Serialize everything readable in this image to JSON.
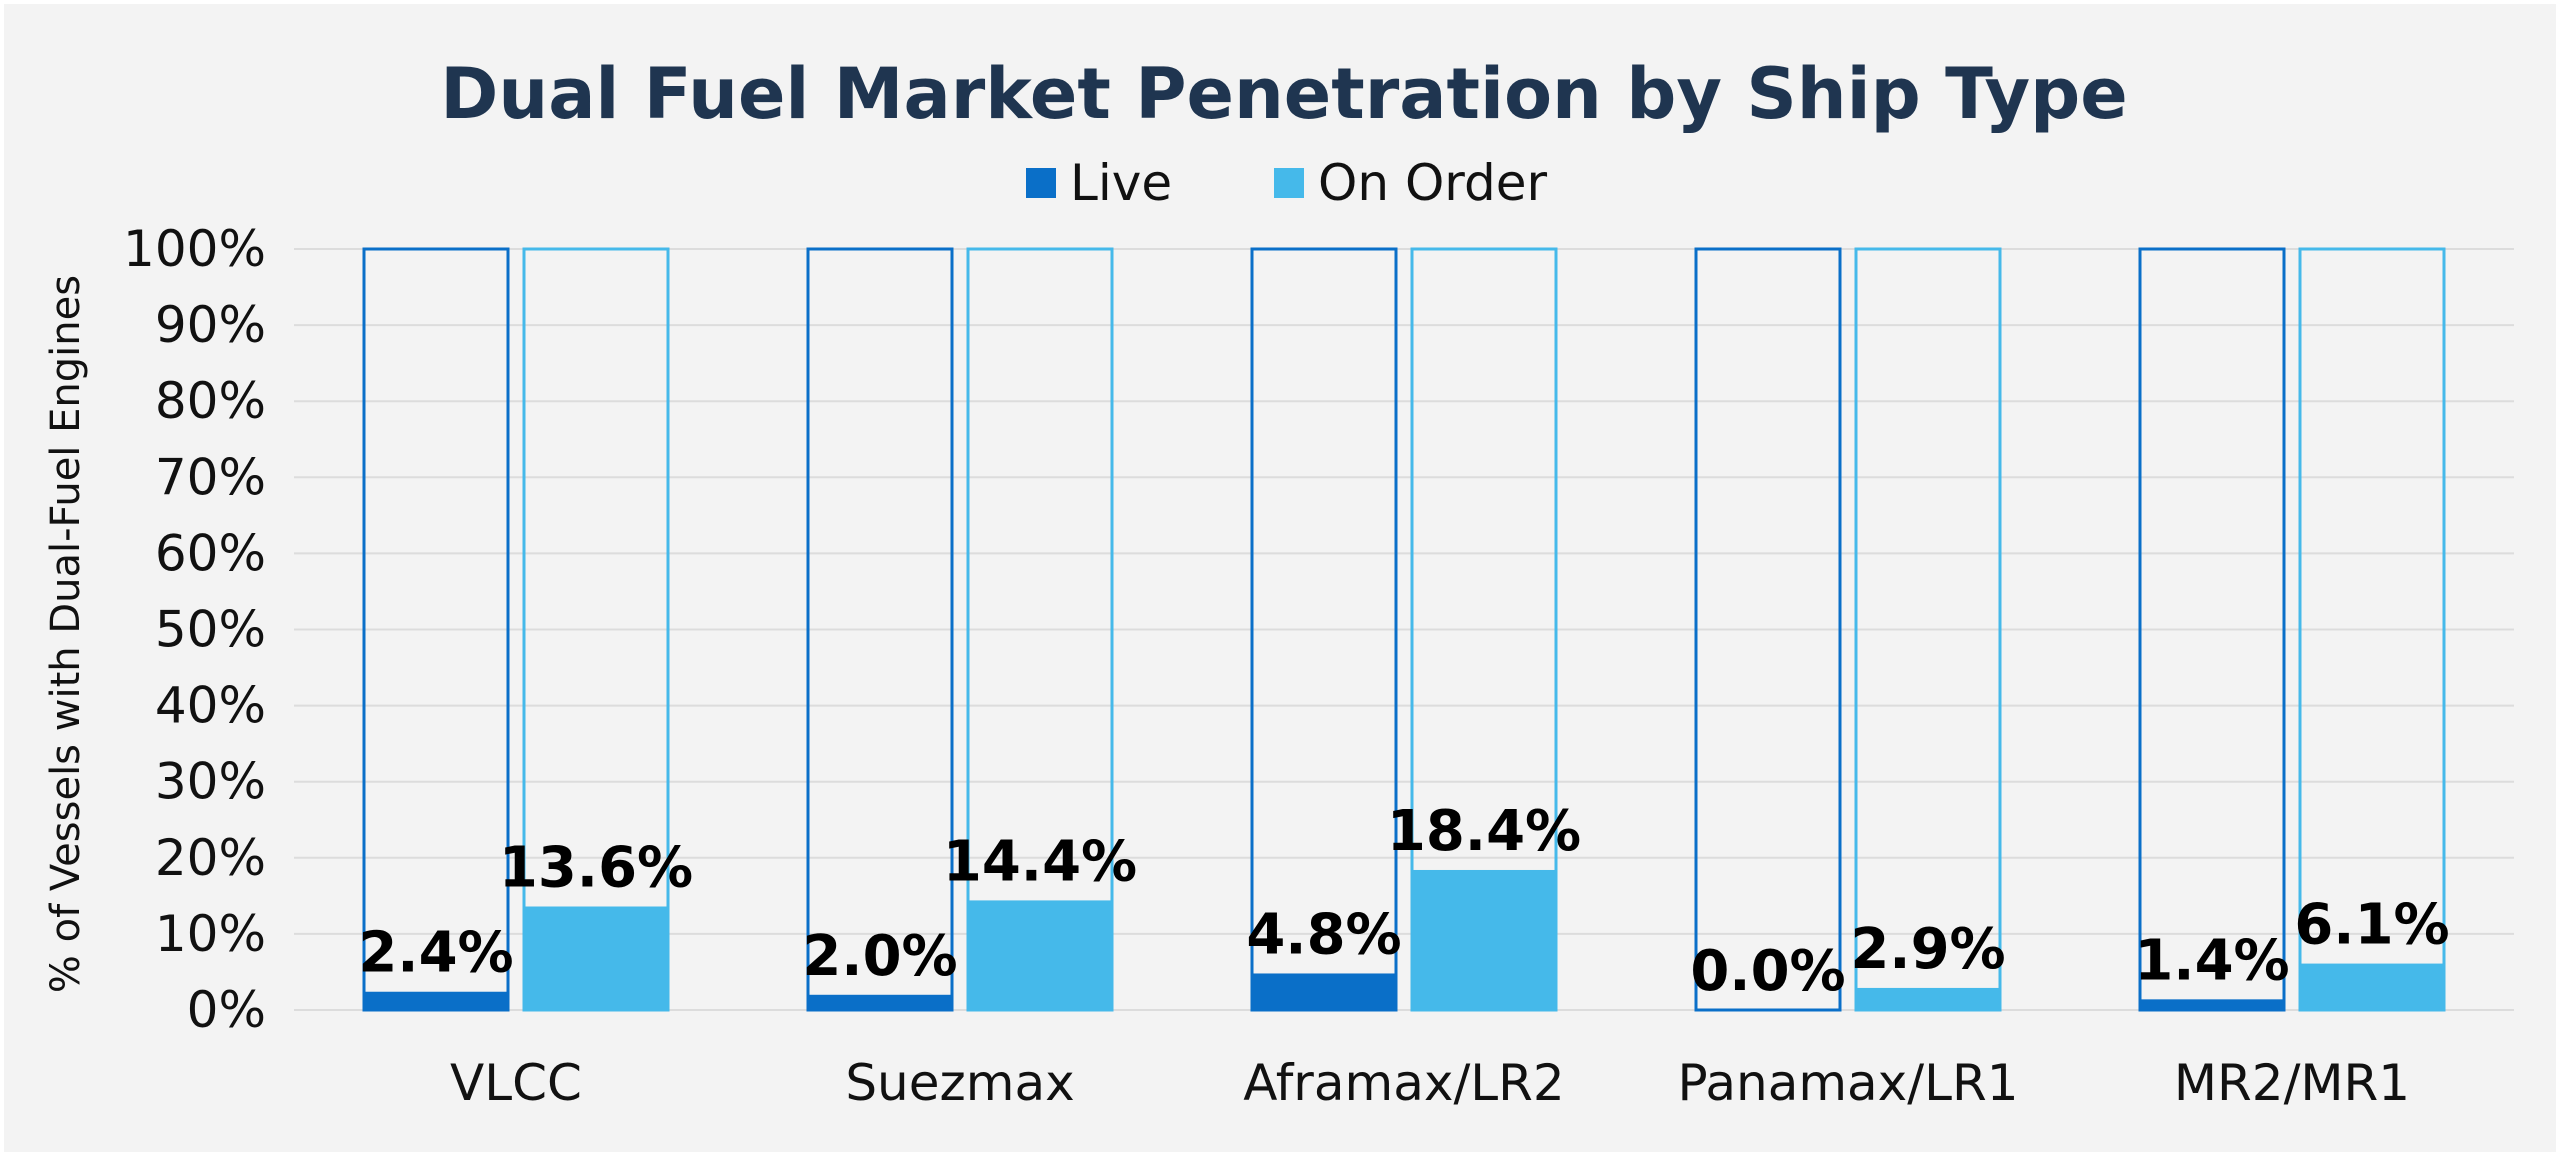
{
  "chart_data": {
    "type": "bar",
    "title": "Dual Fuel Market Penetration by Ship Type",
    "ylabel": "% of Vessels with Dual-Fuel Engines",
    "xlabel": "",
    "categories": [
      "VLCC",
      "Suezmax",
      "Aframax/LR2",
      "Panamax/LR1",
      "MR2/MR1"
    ],
    "series": [
      {
        "name": "Live",
        "values": [
          2.4,
          2.0,
          4.8,
          0.0,
          1.4
        ],
        "color": "#0a6fc8",
        "labels": [
          "2.4%",
          "2.0%",
          "4.8%",
          "0.0%",
          "1.4%"
        ]
      },
      {
        "name": "On Order",
        "values": [
          13.6,
          14.4,
          18.4,
          2.9,
          6.1
        ],
        "color": "#45b9ea",
        "labels": [
          "13.6%",
          "14.4%",
          "18.4%",
          "2.9%",
          "6.1%"
        ]
      }
    ],
    "ylim": [
      0,
      100
    ],
    "yticks": [
      "0%",
      "10%",
      "20%",
      "30%",
      "40%",
      "50%",
      "60%",
      "70%",
      "80%",
      "90%",
      "100%"
    ],
    "grid": true,
    "legend_position": "top-center",
    "outline_to": 100
  }
}
